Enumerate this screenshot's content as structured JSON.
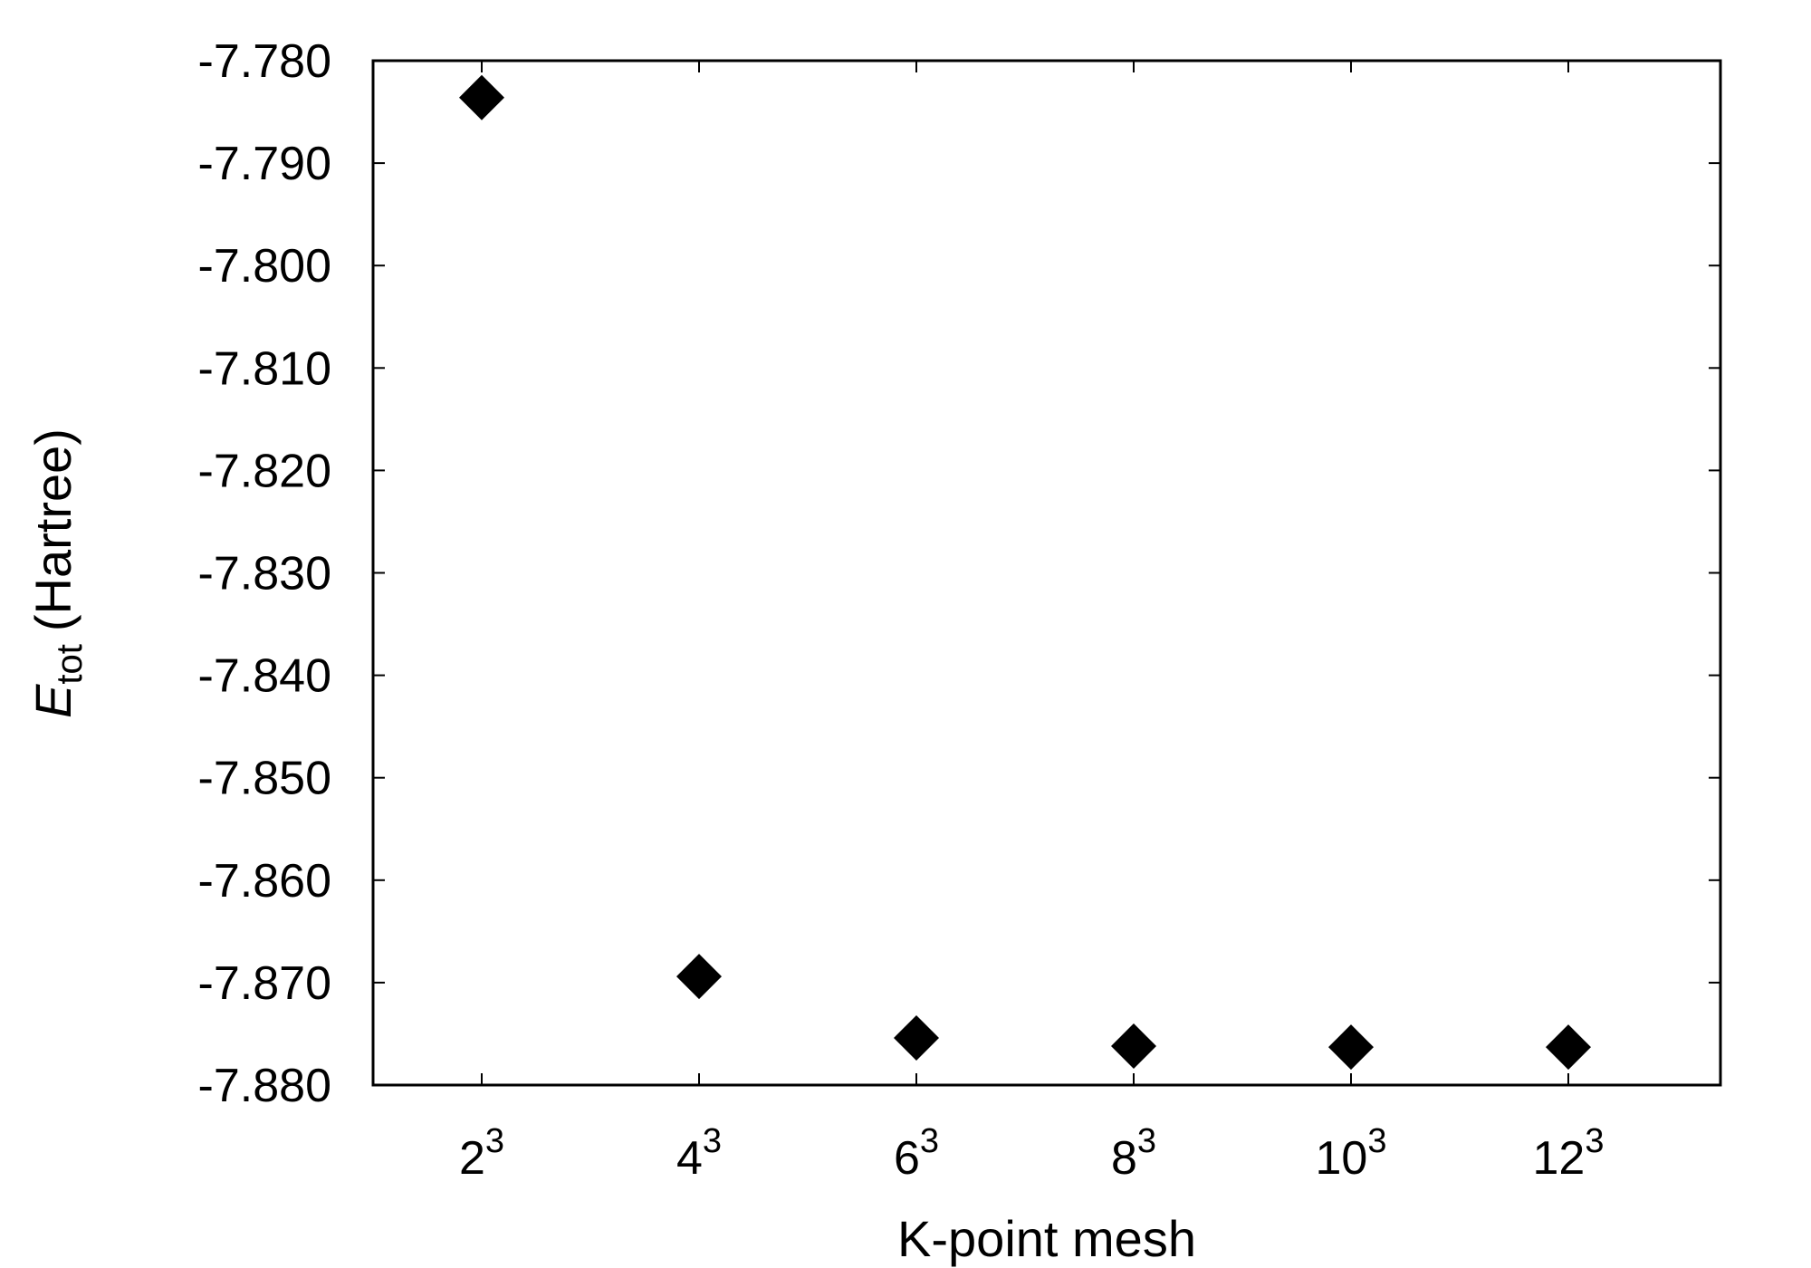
{
  "chart_data": {
    "type": "scatter",
    "title": "",
    "xlabel": "K-point mesh",
    "ylabel": {
      "symbol": "E",
      "subscript": "tot",
      "unit": "(Hartree)"
    },
    "categories": [
      {
        "base": "2",
        "exp": "3"
      },
      {
        "base": "4",
        "exp": "3"
      },
      {
        "base": "6",
        "exp": "3"
      },
      {
        "base": "8",
        "exp": "3"
      },
      {
        "base": "10",
        "exp": "3"
      },
      {
        "base": "12",
        "exp": "3"
      }
    ],
    "values": [
      -7.7836,
      -7.8694,
      -7.8754,
      -7.8762,
      -7.8763,
      -7.8763
    ],
    "ylim": [
      -7.88,
      -7.78
    ],
    "yticks": [
      "-7.780",
      "-7.790",
      "-7.800",
      "-7.810",
      "-7.820",
      "-7.830",
      "-7.840",
      "-7.850",
      "-7.860",
      "-7.870",
      "-7.880"
    ],
    "marker": "diamond",
    "marker_color": "#000000",
    "grid": false,
    "legend": "none"
  }
}
